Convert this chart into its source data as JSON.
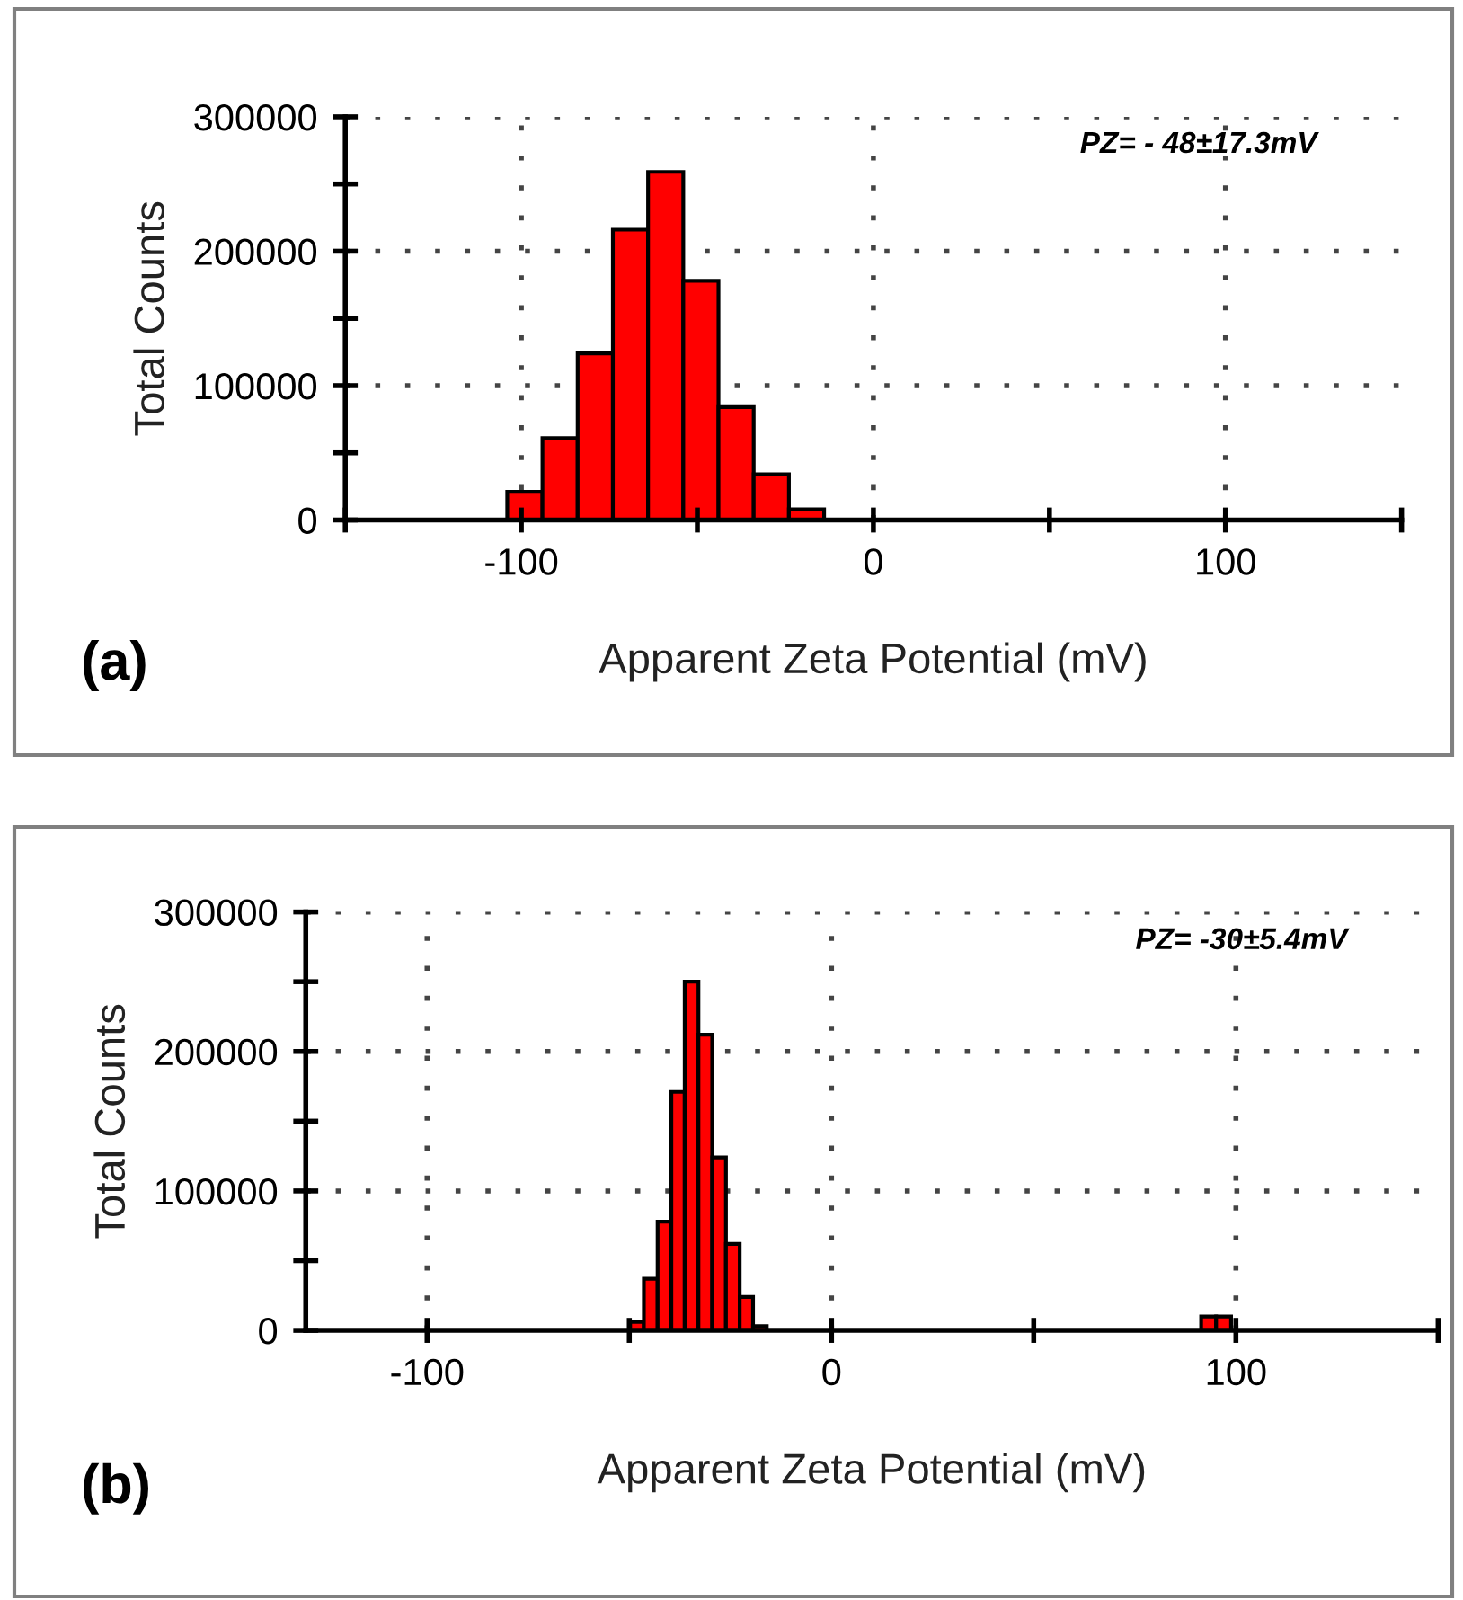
{
  "chart_data": [
    {
      "type": "histogram",
      "xlabel": "Apparent Zeta Potential (mV)",
      "ylabel": "Total Counts",
      "color": "#ff0000",
      "bins": [
        -104,
        -94,
        -84,
        -74,
        -64,
        -54,
        -44,
        -34,
        -24,
        -14
      ],
      "values": [
        21000,
        61000,
        124000,
        216000,
        259000,
        178000,
        84000,
        34000,
        8000
      ],
      "xlim": [
        -150,
        150
      ],
      "xticks": [
        {
          "value": -150,
          "label": null
        },
        -100,
        {
          "value": -50,
          "label": null
        },
        0,
        {
          "value": 50,
          "label": null
        },
        100,
        {
          "value": 150,
          "label": null
        }
      ],
      "ylim": [
        0,
        300000
      ],
      "yticks": [
        0,
        {
          "value": 50000,
          "label": null
        },
        100000,
        {
          "value": 150000,
          "label": null
        },
        200000,
        {
          "value": 250000,
          "label": null
        },
        300000
      ],
      "grid": true,
      "annotations": [
        "PZ= - 48±17.3mV",
        "(a)"
      ]
    },
    {
      "type": "histogram",
      "xlabel": "Apparent Zeta Potential (mV)",
      "ylabel": "Total Counts",
      "color": "#ff0000",
      "bins": [
        -49.8,
        -46.4,
        -43.0,
        -39.6,
        -36.3,
        -32.9,
        -29.5,
        -26.1,
        -22.7,
        -19.4,
        -16.0,
        91.4,
        95.1,
        98.8
      ],
      "values": [
        6000,
        37000,
        78000,
        171000,
        250000,
        212000,
        124000,
        62000,
        24000,
        3000,
        0,
        10000,
        10000
      ],
      "xlim": [
        -130,
        150
      ],
      "xticks": [
        {
          "value": -100,
          "label": "-100"
        },
        {
          "value": -50,
          "label": null
        },
        0,
        {
          "value": 50,
          "label": null
        },
        100,
        {
          "value": 150,
          "label": null
        }
      ],
      "ylim": [
        0,
        300000
      ],
      "yticks": [
        0,
        {
          "value": 50000,
          "label": null
        },
        100000,
        {
          "value": 150000,
          "label": null
        },
        200000,
        {
          "value": 250000,
          "label": null
        },
        300000
      ],
      "grid": true,
      "annotations": [
        "PZ= -30±5.4mV",
        "(b)"
      ]
    }
  ]
}
